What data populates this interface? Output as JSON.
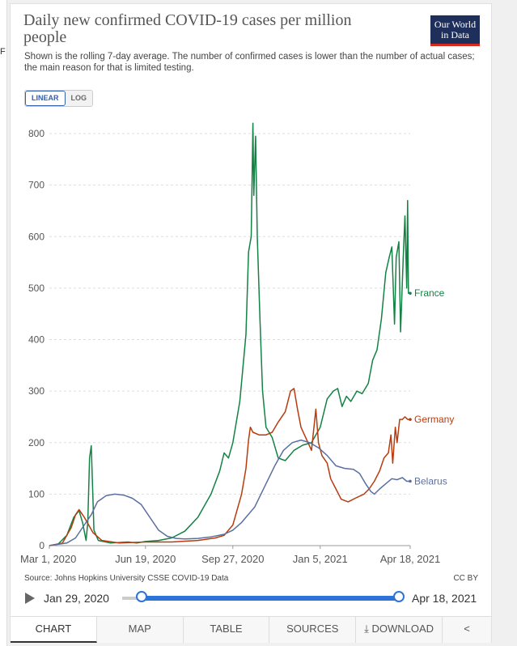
{
  "page": {
    "title": "Daily new confirmed COVID-19 cases per million people",
    "subtitle": "Shown is the rolling 7-day average. The number of confirmed cases is lower than the number of actual cases; the main reason for that is limited testing.",
    "logo_line1": "Our World",
    "logo_line2": "in Data",
    "left_mark": "F",
    "scale_options": [
      "LINEAR",
      "LOG"
    ],
    "scale_selected": "LINEAR",
    "source": "Source: Johns Hopkins University CSSE COVID-19 Data",
    "license": "CC BY",
    "timeline_start": "Jan 29, 2020",
    "timeline_end": "Apr 18, 2021",
    "tabs": [
      "CHART",
      "MAP",
      "TABLE",
      "SOURCES",
      "DOWNLOAD"
    ]
  },
  "colors": {
    "France": "#138244",
    "Germany": "#b83b0e",
    "Belarus": "#5a6fa0",
    "accent": "#2d74d8",
    "logo_bg": "#1f2f5c",
    "logo_bar": "#d42b21"
  },
  "chart_data": {
    "type": "line",
    "title": "Daily new confirmed COVID-19 cases per million people",
    "xlabel": "",
    "ylabel": "",
    "ylim": [
      0,
      800
    ],
    "y_ticks": [
      0,
      100,
      200,
      300,
      400,
      500,
      600,
      700,
      800
    ],
    "x_ticks": [
      "Mar 1, 2020",
      "Jun 19, 2020",
      "Sep 27, 2020",
      "Jan 5, 2021",
      "Apr 18, 2021"
    ],
    "x_tick_days": [
      0,
      110,
      210,
      310,
      413
    ],
    "xlim_days": [
      0,
      413
    ],
    "grid": true,
    "legend": "end-of-line labels",
    "series": [
      {
        "name": "France",
        "points": [
          [
            0,
            0
          ],
          [
            10,
            3
          ],
          [
            20,
            20
          ],
          [
            28,
            55
          ],
          [
            34,
            68
          ],
          [
            38,
            45
          ],
          [
            42,
            10
          ],
          [
            44,
            45
          ],
          [
            46,
            170
          ],
          [
            48,
            194
          ],
          [
            49,
            140
          ],
          [
            51,
            30
          ],
          [
            56,
            10
          ],
          [
            70,
            5
          ],
          [
            90,
            7
          ],
          [
            100,
            5
          ],
          [
            110,
            8
          ],
          [
            125,
            10
          ],
          [
            140,
            15
          ],
          [
            155,
            28
          ],
          [
            170,
            55
          ],
          [
            185,
            100
          ],
          [
            195,
            145
          ],
          [
            200,
            180
          ],
          [
            205,
            170
          ],
          [
            210,
            200
          ],
          [
            218,
            280
          ],
          [
            225,
            410
          ],
          [
            228,
            570
          ],
          [
            231,
            600
          ],
          [
            233,
            820
          ],
          [
            234,
            680
          ],
          [
            236,
            795
          ],
          [
            238,
            600
          ],
          [
            241,
            440
          ],
          [
            244,
            300
          ],
          [
            248,
            230
          ],
          [
            255,
            210
          ],
          [
            262,
            170
          ],
          [
            270,
            165
          ],
          [
            280,
            185
          ],
          [
            290,
            195
          ],
          [
            300,
            200
          ],
          [
            310,
            230
          ],
          [
            318,
            285
          ],
          [
            325,
            300
          ],
          [
            330,
            305
          ],
          [
            335,
            270
          ],
          [
            340,
            290
          ],
          [
            345,
            280
          ],
          [
            352,
            300
          ],
          [
            358,
            295
          ],
          [
            365,
            315
          ],
          [
            370,
            360
          ],
          [
            375,
            380
          ],
          [
            380,
            440
          ],
          [
            385,
            530
          ],
          [
            389,
            560
          ],
          [
            392,
            580
          ],
          [
            395,
            430
          ],
          [
            397,
            560
          ],
          [
            400,
            590
          ],
          [
            402,
            415
          ],
          [
            405,
            560
          ],
          [
            407,
            640
          ],
          [
            409,
            500
          ],
          [
            410,
            670
          ],
          [
            411,
            490
          ],
          [
            413,
            490
          ]
        ]
      },
      {
        "name": "Germany",
        "points": [
          [
            0,
            0
          ],
          [
            15,
            5
          ],
          [
            25,
            35
          ],
          [
            30,
            60
          ],
          [
            34,
            70
          ],
          [
            40,
            55
          ],
          [
            50,
            25
          ],
          [
            60,
            10
          ],
          [
            80,
            5
          ],
          [
            110,
            7
          ],
          [
            140,
            7
          ],
          [
            170,
            10
          ],
          [
            190,
            15
          ],
          [
            200,
            20
          ],
          [
            210,
            40
          ],
          [
            220,
            100
          ],
          [
            225,
            150
          ],
          [
            228,
            205
          ],
          [
            230,
            230
          ],
          [
            233,
            220
          ],
          [
            240,
            215
          ],
          [
            248,
            215
          ],
          [
            255,
            220
          ],
          [
            262,
            240
          ],
          [
            270,
            260
          ],
          [
            276,
            300
          ],
          [
            280,
            305
          ],
          [
            284,
            265
          ],
          [
            288,
            230
          ],
          [
            292,
            215
          ],
          [
            296,
            200
          ],
          [
            300,
            185
          ],
          [
            305,
            265
          ],
          [
            308,
            200
          ],
          [
            312,
            175
          ],
          [
            318,
            160
          ],
          [
            322,
            130
          ],
          [
            328,
            110
          ],
          [
            334,
            90
          ],
          [
            342,
            85
          ],
          [
            350,
            92
          ],
          [
            360,
            100
          ],
          [
            366,
            110
          ],
          [
            372,
            125
          ],
          [
            378,
            145
          ],
          [
            383,
            170
          ],
          [
            388,
            180
          ],
          [
            391,
            215
          ],
          [
            393,
            160
          ],
          [
            396,
            230
          ],
          [
            398,
            200
          ],
          [
            401,
            245
          ],
          [
            404,
            245
          ],
          [
            407,
            250
          ],
          [
            410,
            245
          ],
          [
            413,
            245
          ]
        ]
      },
      {
        "name": "Belarus",
        "points": [
          [
            0,
            0
          ],
          [
            20,
            5
          ],
          [
            30,
            15
          ],
          [
            40,
            40
          ],
          [
            48,
            60
          ],
          [
            55,
            85
          ],
          [
            65,
            97
          ],
          [
            75,
            100
          ],
          [
            85,
            98
          ],
          [
            95,
            92
          ],
          [
            105,
            80
          ],
          [
            115,
            55
          ],
          [
            125,
            30
          ],
          [
            135,
            18
          ],
          [
            145,
            14
          ],
          [
            155,
            13
          ],
          [
            170,
            14
          ],
          [
            185,
            17
          ],
          [
            200,
            22
          ],
          [
            210,
            30
          ],
          [
            220,
            45
          ],
          [
            235,
            75
          ],
          [
            248,
            120
          ],
          [
            258,
            155
          ],
          [
            268,
            185
          ],
          [
            278,
            200
          ],
          [
            288,
            205
          ],
          [
            298,
            200
          ],
          [
            308,
            190
          ],
          [
            318,
            175
          ],
          [
            328,
            155
          ],
          [
            338,
            150
          ],
          [
            348,
            148
          ],
          [
            355,
            140
          ],
          [
            362,
            120
          ],
          [
            368,
            105
          ],
          [
            372,
            100
          ],
          [
            378,
            110
          ],
          [
            385,
            120
          ],
          [
            392,
            130
          ],
          [
            398,
            128
          ],
          [
            404,
            132
          ],
          [
            409,
            125
          ],
          [
            413,
            125
          ]
        ]
      }
    ]
  }
}
